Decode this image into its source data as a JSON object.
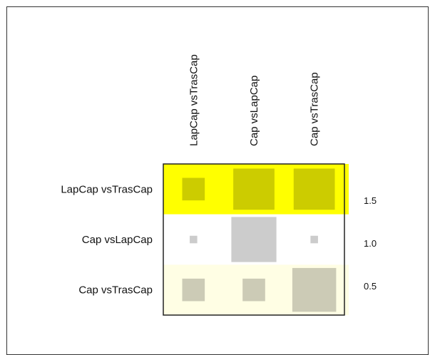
{
  "chart_data": {
    "type": "heatmap",
    "title": "",
    "row_labels": [
      "LapCap vsTrasCap",
      "Cap vsLapCap",
      "Cap vsTrasCap"
    ],
    "col_labels": [
      "LapCap vsTrasCap",
      "Cap vsLapCap",
      "Cap vsTrasCap"
    ],
    "row_colors": [
      "#ffff00",
      "#ffffff",
      "#fffee4"
    ],
    "values": [
      [
        0.45,
        1.5,
        1.5
      ],
      [
        0.05,
        1.8,
        0.05
      ],
      [
        0.45,
        0.45,
        1.7
      ]
    ],
    "legend": {
      "placement": "right",
      "ticks": [
        "1.5",
        "1.0",
        "0.5"
      ],
      "values": [
        1.5,
        1.0,
        0.5
      ],
      "range": [
        0.0,
        2.0
      ],
      "colors": [
        "#fffee4",
        "#ffffff",
        "#ffff00"
      ]
    }
  }
}
